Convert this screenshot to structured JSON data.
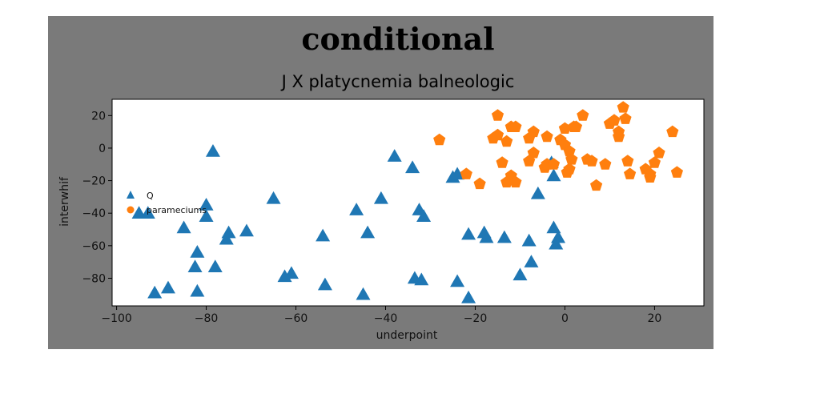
{
  "chart_data": {
    "type": "scatter",
    "suptitle": "conditional",
    "title": "J X platycnemia balneologic",
    "xlabel": "underpoint",
    "ylabel": "interwhif",
    "xlim": [
      -101,
      31
    ],
    "ylim": [
      -97,
      30
    ],
    "xticks": [
      -100,
      -80,
      -60,
      -40,
      -20,
      0,
      20
    ],
    "xtick_labels": [
      "−100",
      "−80",
      "−60",
      "−40",
      "−20",
      "0",
      "20"
    ],
    "yticks": [
      20,
      0,
      -20,
      -40,
      -60,
      -80
    ],
    "ytick_labels": [
      "20",
      "0",
      "−20",
      "−40",
      "−60",
      "−80"
    ],
    "grid": false,
    "legend_position": "center-left",
    "series": [
      {
        "name": "Q",
        "marker": "triangle",
        "color": "#1f77b4",
        "points": [
          [
            -78.5,
            -2
          ],
          [
            -80,
            -35
          ],
          [
            -93,
            -40
          ],
          [
            -95,
            -40
          ],
          [
            -80,
            -42
          ],
          [
            -85,
            -49
          ],
          [
            -82,
            -64
          ],
          [
            -82.5,
            -73
          ],
          [
            -78,
            -73
          ],
          [
            -75,
            -52
          ],
          [
            -75.5,
            -56
          ],
          [
            -71,
            -51
          ],
          [
            -65,
            -31
          ],
          [
            -62.5,
            -79
          ],
          [
            -61,
            -77
          ],
          [
            -54,
            -54
          ],
          [
            -53.5,
            -84
          ],
          [
            -46.5,
            -38
          ],
          [
            -45,
            -90
          ],
          [
            -44,
            -52
          ],
          [
            -41,
            -31
          ],
          [
            -38,
            -5
          ],
          [
            -34,
            -12
          ],
          [
            -32.5,
            -38
          ],
          [
            -31.5,
            -42
          ],
          [
            -33.5,
            -80
          ],
          [
            -32,
            -81
          ],
          [
            -25,
            -18
          ],
          [
            -24,
            -16
          ],
          [
            -24,
            -82
          ],
          [
            -21.5,
            -53
          ],
          [
            -21.5,
            -92
          ],
          [
            -18,
            -52
          ],
          [
            -17.5,
            -55
          ],
          [
            -13.5,
            -55
          ],
          [
            -10,
            -78
          ],
          [
            -8,
            -57
          ],
          [
            -7.5,
            -70
          ],
          [
            -6,
            -28
          ],
          [
            -3,
            -9
          ],
          [
            -2.5,
            -17
          ],
          [
            -2.5,
            -49
          ],
          [
            -2,
            -59
          ],
          [
            -1.5,
            -55
          ],
          [
            -91.5,
            -89
          ],
          [
            -88.5,
            -86
          ],
          [
            -82,
            -88
          ]
        ]
      },
      {
        "name": "parameciums",
        "marker": "pentagon",
        "color": "#ff7f0e",
        "points": [
          [
            -28,
            5
          ],
          [
            -22,
            -16
          ],
          [
            -19,
            -22
          ],
          [
            -15,
            20
          ],
          [
            -15,
            8
          ],
          [
            -16,
            6
          ],
          [
            -13,
            4
          ],
          [
            -12,
            13
          ],
          [
            -11,
            13
          ],
          [
            -14,
            -9
          ],
          [
            -12,
            -17
          ],
          [
            -13,
            -21
          ],
          [
            -11,
            -21
          ],
          [
            -8,
            6
          ],
          [
            -7,
            -3
          ],
          [
            -8,
            -8
          ],
          [
            -7,
            10
          ],
          [
            -4,
            7
          ],
          [
            -4.5,
            -12
          ],
          [
            -4,
            -10
          ],
          [
            -2.5,
            -10
          ],
          [
            -1,
            5
          ],
          [
            0,
            12
          ],
          [
            0,
            2
          ],
          [
            1,
            -2
          ],
          [
            1.5,
            -7
          ],
          [
            1,
            -13
          ],
          [
            0.5,
            -15
          ],
          [
            2,
            13
          ],
          [
            2.5,
            13
          ],
          [
            4,
            20
          ],
          [
            5,
            -7
          ],
          [
            6,
            -8
          ],
          [
            7,
            -23
          ],
          [
            9,
            -10
          ],
          [
            10,
            15
          ],
          [
            11,
            17
          ],
          [
            12,
            10
          ],
          [
            12,
            7
          ],
          [
            13,
            25
          ],
          [
            13.5,
            18
          ],
          [
            14,
            -8
          ],
          [
            14.5,
            -16
          ],
          [
            18,
            -13
          ],
          [
            19,
            -16
          ],
          [
            19,
            -18
          ],
          [
            20,
            -9
          ],
          [
            21,
            -3
          ],
          [
            24,
            10
          ],
          [
            25,
            -15
          ]
        ]
      }
    ]
  }
}
